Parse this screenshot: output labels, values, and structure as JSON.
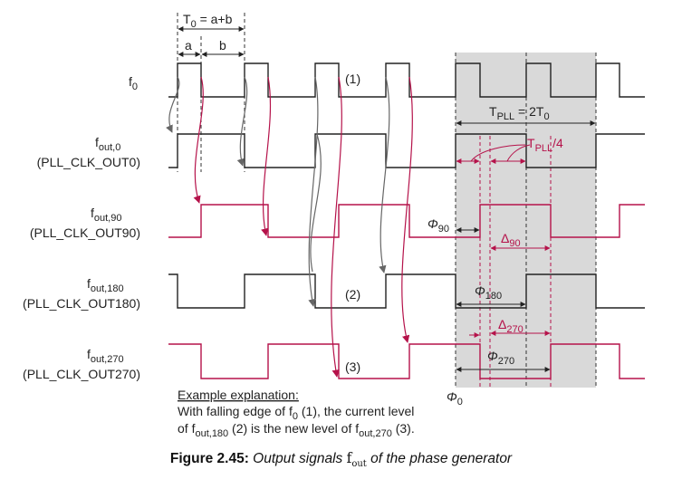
{
  "signals": {
    "f0": {
      "main": "f",
      "sub": "0"
    },
    "fout0": {
      "main": "f",
      "sub": "out,0",
      "pin": "(PLL_CLK_OUT0)"
    },
    "fout90": {
      "main": "f",
      "sub": "out,90",
      "pin": "(PLL_CLK_OUT90)"
    },
    "fout180": {
      "main": "f",
      "sub": "out,180",
      "pin": "(PLL_CLK_OUT180)"
    },
    "fout270": {
      "main": "f",
      "sub": "out,270",
      "pin": "(PLL_CLK_OUT270)"
    }
  },
  "period": {
    "T": "T",
    "sub": "0",
    "eq": " = a+b",
    "a": "a",
    "b": "b"
  },
  "pll": {
    "T": "T",
    "sub": "PLL",
    "eq": " = 2T",
    "sub2": "0",
    "quarter_T": "T",
    "quarter_sub": "PLL",
    "quarter_suffix": "/4"
  },
  "phases": {
    "phi": "Φ",
    "phi90_sub": "90",
    "phi180_sub": "180",
    "phi270_sub": "270",
    "phi0_sub": "0",
    "delta": "Δ",
    "delta90_sub": "90",
    "delta270_sub": "270"
  },
  "markers": {
    "m1": "(1)",
    "m2": "(2)",
    "m3": "(3)"
  },
  "explanation": {
    "title": "Example explanation:",
    "line1_a": "With falling edge of f",
    "line1_sub": "0",
    "line1_b": " (1), the current level",
    "line2_a": "of f",
    "line2_sub": "out,180",
    "line2_b": " (2) is the new level of f",
    "line2_sub2": "out,270",
    "line2_c": " (3)."
  },
  "caption": {
    "fig": "Figure 2.45:",
    "text_a": " Output signals ",
    "f": "f",
    "f_sub": "out",
    "text_b": " of the phase generator"
  },
  "colors": {
    "accent": "#b5124a",
    "signal": "#222222",
    "shade": "#d9d9d9"
  }
}
